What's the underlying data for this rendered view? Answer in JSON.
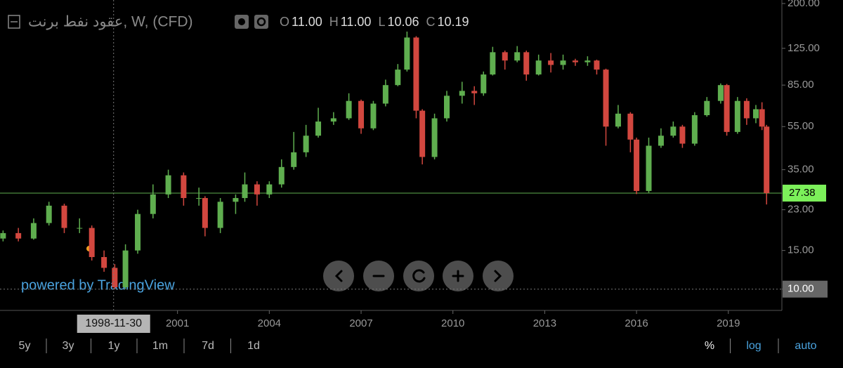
{
  "header": {
    "symbol": "عقود نفط برنت, W, (CFD)",
    "ohlc": [
      {
        "key": "O",
        "value": "11.00"
      },
      {
        "key": "H",
        "value": "11.00"
      },
      {
        "key": "L",
        "value": "10.06"
      },
      {
        "key": "C",
        "value": "10.19"
      }
    ]
  },
  "chart_data": {
    "type": "candlestick",
    "log_scale": true,
    "x": [
      1995.3,
      1995.8,
      1996.3,
      1996.8,
      1997.3,
      1997.8,
      1998.2,
      1998.6,
      1998.95,
      1999.3,
      1999.7,
      2000.2,
      2000.7,
      2001.2,
      2001.7,
      2001.9,
      2002.4,
      2002.9,
      2003.2,
      2003.6,
      2004.0,
      2004.4,
      2004.8,
      2005.2,
      2005.6,
      2006.1,
      2006.6,
      2007.0,
      2007.4,
      2007.8,
      2008.2,
      2008.5,
      2008.8,
      2009.0,
      2009.4,
      2009.8,
      2010.3,
      2010.7,
      2011.0,
      2011.3,
      2011.7,
      2012.1,
      2012.4,
      2012.8,
      2013.2,
      2013.6,
      2014.0,
      2014.4,
      2014.7,
      2015.0,
      2015.4,
      2015.8,
      2016.0,
      2016.4,
      2016.8,
      2017.2,
      2017.5,
      2017.9,
      2018.3,
      2018.75,
      2018.95,
      2019.3,
      2019.6,
      2019.9,
      2020.1,
      2020.25
    ],
    "open": [
      17,
      18,
      17,
      20,
      24,
      19,
      19,
      14,
      12.5,
      10.2,
      15,
      22,
      27,
      33,
      26,
      26,
      19,
      25,
      26,
      30,
      27,
      30,
      36,
      42,
      50,
      58,
      60,
      72,
      54,
      70,
      85,
      100,
      140,
      65,
      40,
      60,
      76,
      80,
      78,
      95,
      120,
      110,
      120,
      95,
      110,
      105,
      110,
      108,
      110,
      100,
      55,
      63,
      48,
      28,
      45,
      50,
      55,
      46,
      62,
      72,
      85,
      52,
      72,
      60,
      66,
      55
    ],
    "high": [
      18.5,
      19,
      21,
      25,
      24.5,
      21,
      19.5,
      15,
      13,
      16,
      23,
      30,
      35,
      34,
      29,
      26.5,
      26,
      27,
      34,
      31,
      31,
      39,
      52,
      56,
      67,
      64,
      78,
      73,
      72,
      90,
      106,
      149,
      142,
      66,
      63,
      80,
      88,
      84,
      98,
      127,
      122,
      128,
      122,
      117,
      119,
      117,
      112,
      115,
      111,
      101,
      69,
      64,
      49,
      49,
      54,
      58,
      56,
      64,
      75,
      86.5,
      86,
      75,
      74,
      69,
      71,
      56
    ],
    "low": [
      16.5,
      16.5,
      16.8,
      19.5,
      18,
      18,
      13.5,
      12,
      10,
      10,
      14.5,
      21,
      26,
      24,
      24,
      17.4,
      18,
      22,
      25,
      24,
      26,
      29,
      35,
      40,
      49,
      56,
      59,
      51,
      53,
      68,
      84,
      98,
      60,
      37,
      39,
      58,
      70,
      69,
      76,
      94,
      100,
      108,
      89,
      94,
      97,
      100,
      104,
      104,
      95,
      45,
      54,
      42,
      27.1,
      27.5,
      44,
      49,
      44,
      45,
      61,
      70,
      50,
      51,
      56,
      57,
      53,
      24.3
    ],
    "close": [
      18,
      17,
      20,
      24,
      19,
      19,
      14,
      12.5,
      10.2,
      15,
      22,
      27,
      33,
      26,
      26,
      19,
      25,
      26,
      30,
      27,
      30,
      36,
      42,
      50,
      58,
      60,
      72,
      54,
      70,
      85,
      100,
      140,
      65,
      40,
      60,
      76,
      80,
      78,
      95,
      120,
      110,
      120,
      95,
      110,
      105,
      110,
      108,
      110,
      100,
      55,
      63,
      48,
      28,
      45,
      50,
      55,
      46,
      62,
      72,
      85,
      52,
      72,
      60,
      66,
      55,
      27.38
    ],
    "up_color": "#5fae4f",
    "down_color": "#d2473f",
    "xlim": [
      1995.2,
      2020.75
    ],
    "xticks": [
      2001,
      2004,
      2007,
      2010,
      2013,
      2016,
      2019
    ],
    "ylim": [
      8,
      207.5
    ],
    "yticks": [
      {
        "value": 10,
        "label": "10.00"
      },
      {
        "value": 15,
        "label": "15.00"
      },
      {
        "value": 23,
        "label": "23.00"
      },
      {
        "value": 35,
        "label": "35.00"
      },
      {
        "value": 55,
        "label": "55.00"
      },
      {
        "value": 85,
        "label": "85.00"
      },
      {
        "value": 125,
        "label": "125.00"
      },
      {
        "value": 200,
        "label": "200.00"
      }
    ],
    "last_price": 27.38,
    "crosshair": {
      "date": "1998-11-30",
      "price": {
        "value": 10,
        "label": "10.00"
      }
    }
  },
  "watermark": "powered by TradingView",
  "ranges": [
    "5y",
    "3y",
    "1y",
    "1m",
    "7d",
    "1d"
  ],
  "scale_options": [
    "%",
    "log",
    "auto"
  ]
}
